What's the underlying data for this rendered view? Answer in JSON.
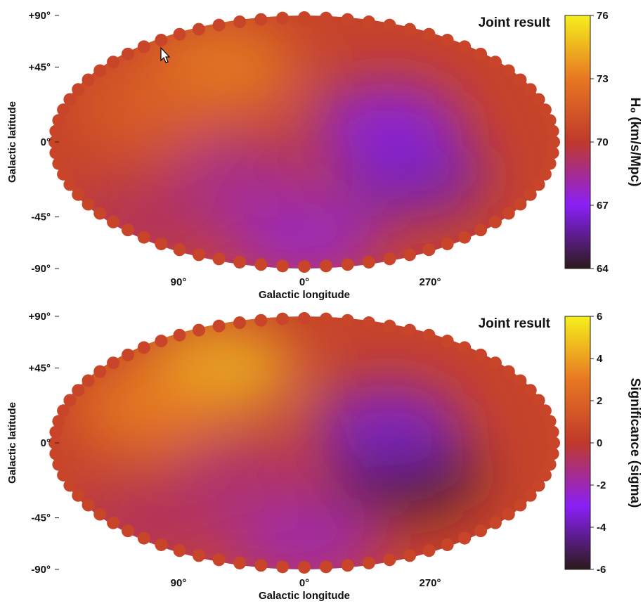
{
  "chart_data": [
    {
      "type": "heatmap",
      "projection": "mollweide",
      "title": "Joint result",
      "xlabel": "Galactic longitude",
      "ylabel": "Galactic latitude",
      "x_ticks": [
        "90°",
        "0°",
        "270°"
      ],
      "y_ticks": [
        "+90°",
        "+45°",
        "0°",
        "-45°",
        "-90°"
      ],
      "colorbar": {
        "label": "H₀ (km/s/Mpc)",
        "range": [
          64,
          76
        ],
        "ticks": [
          "76",
          "73",
          "70",
          "67",
          "64"
        ]
      },
      "features": [
        {
          "lon": 75,
          "lat": 45,
          "value": 73.3
        },
        {
          "lon": 115,
          "lat": 20,
          "value": 72.0
        },
        {
          "lon": 280,
          "lat": -20,
          "value": 66.2
        },
        {
          "lon": 300,
          "lat": 10,
          "value": 66.8
        },
        {
          "lon": 0,
          "lat": -60,
          "value": 67.5
        },
        {
          "lon": 50,
          "lat": -25,
          "value": 68.3
        },
        {
          "lon": 150,
          "lat": -50,
          "value": 69.2
        }
      ]
    },
    {
      "type": "heatmap",
      "projection": "mollweide",
      "title": "Joint result",
      "xlabel": "Galactic longitude",
      "ylabel": "Galactic latitude",
      "x_ticks": [
        "90°",
        "0°",
        "270°"
      ],
      "y_ticks": [
        "+90°",
        "+45°",
        "0°",
        "-45°",
        "-90°"
      ],
      "colorbar": {
        "label": "Significance (sigma)",
        "range": [
          -6,
          6
        ],
        "ticks": [
          "6",
          "4",
          "2",
          "0",
          "-2",
          "-4",
          "-6"
        ]
      },
      "features": [
        {
          "lon": 75,
          "lat": 45,
          "value": 4.6
        },
        {
          "lon": 115,
          "lat": 20,
          "value": 3.2
        },
        {
          "lon": 285,
          "lat": -18,
          "value": -5.6
        },
        {
          "lon": 300,
          "lat": 10,
          "value": -3.5
        },
        {
          "lon": 0,
          "lat": -60,
          "value": -2.2
        },
        {
          "lon": 50,
          "lat": -25,
          "value": -1.2
        },
        {
          "lon": 150,
          "lat": -50,
          "value": -0.8
        }
      ]
    }
  ],
  "colormap": [
    "#2b1a1a",
    "#8a1ff7",
    "#c0392b",
    "#e87722",
    "#f5f01c"
  ],
  "cursor_icon": "pointer-arrow-icon"
}
